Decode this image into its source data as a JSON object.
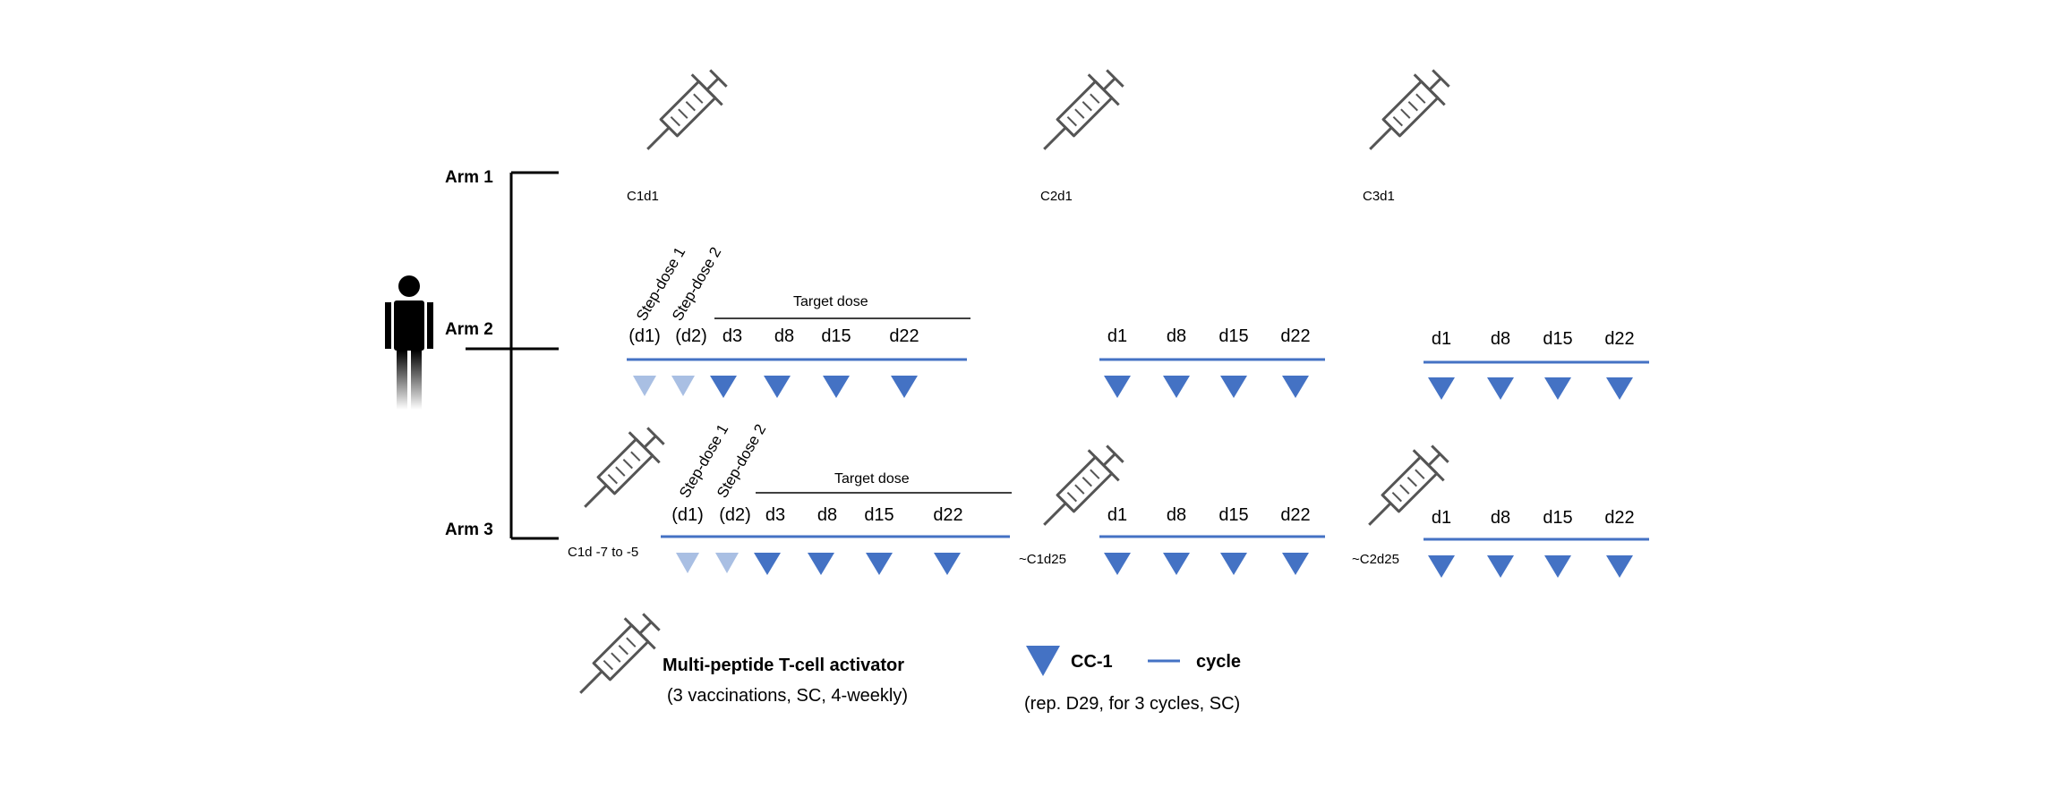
{
  "arms": [
    {
      "label": "Arm 1"
    },
    {
      "label": "Arm 2"
    },
    {
      "label": "Arm 3"
    }
  ],
  "arm1": {
    "vaccinations": [
      "C1d1",
      "C2d1",
      "C3d1"
    ]
  },
  "arm2": {
    "step_labels": [
      "Step-dose 1",
      "Step-dose 2"
    ],
    "target_label": "Target dose",
    "cycle1_days": [
      "(d1)",
      "(d2)",
      "d3",
      "d8",
      "d15",
      "d22"
    ],
    "cycle2_days": [
      "d1",
      "d8",
      "d15",
      "d22"
    ],
    "cycle3_days": [
      "d1",
      "d8",
      "d15",
      "d22"
    ]
  },
  "arm3": {
    "vaccinations": [
      "C1d -7 to -5",
      "~C1d25",
      "~C2d25"
    ],
    "step_labels": [
      "Step-dose 1",
      "Step-dose 2"
    ],
    "target_label": "Target dose",
    "cycle1_days": [
      "(d1)",
      "(d2)",
      "d3",
      "d8",
      "d15",
      "d22"
    ],
    "cycle2_days": [
      "d1",
      "d8",
      "d15",
      "d22"
    ],
    "cycle3_days": [
      "d1",
      "d8",
      "d15",
      "d22"
    ]
  },
  "legend": {
    "vaccine_title": "Multi-peptide T-cell activator",
    "vaccine_detail": "(3 vaccinations, SC, 4-weekly)",
    "drug_label": "CC-1",
    "cycle_label": "cycle",
    "drug_detail": "(rep. D29, for 3 cycles, SC)"
  },
  "colors": {
    "triangle": "#4472c4",
    "triangle_light": "#a9bfe3",
    "cycle_line": "#4472c4",
    "syringe": "#555555"
  }
}
